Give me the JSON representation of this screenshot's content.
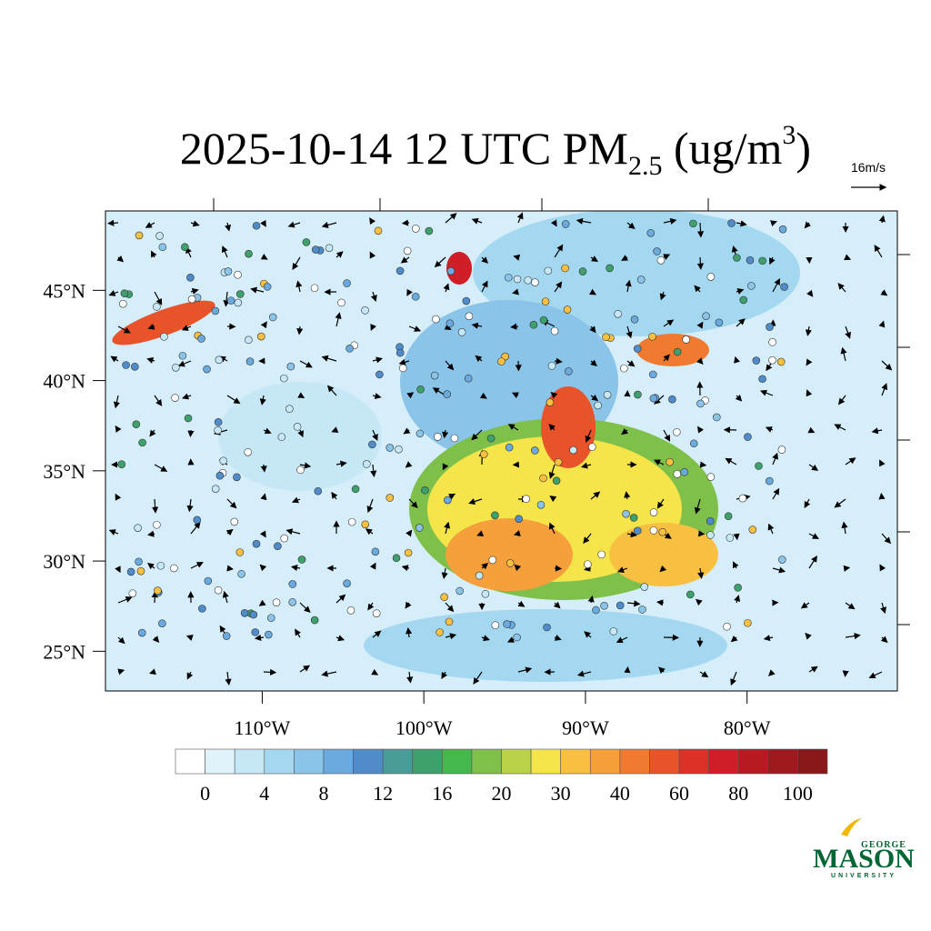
{
  "title": {
    "main": "2025-10-14 12 UTC PM",
    "sub": "2.5",
    "unit_open": " (ug/m",
    "sup": "3",
    "unit_close": ")"
  },
  "vector_reference": "16m/s",
  "map": {
    "xlim": [
      -119.7,
      -70.7
    ],
    "ylim": [
      22.8,
      49.4
    ],
    "xticks": [
      {
        "value": -110,
        "label": "110°W"
      },
      {
        "value": -100,
        "label": "100°W"
      },
      {
        "value": -90,
        "label": "90°W"
      },
      {
        "value": -80,
        "label": "80°W"
      }
    ],
    "yticks": [
      {
        "value": 25,
        "label": "25°N"
      },
      {
        "value": 30,
        "label": "30°N"
      },
      {
        "value": 35,
        "label": "35°N"
      },
      {
        "value": 40,
        "label": "40°N"
      },
      {
        "value": 45,
        "label": "45°N"
      }
    ]
  },
  "colorbar": {
    "colors": [
      "#ffffff",
      "#e0f3fb",
      "#c6e8f6",
      "#a4d8f0",
      "#8ac4e8",
      "#6aaade",
      "#4f8cc9",
      "#4a9c9a",
      "#3ea06c",
      "#44b84a",
      "#7ec04a",
      "#b8d24a",
      "#f5e54a",
      "#f8c040",
      "#f5a03a",
      "#f07a30",
      "#e8532a",
      "#dd3128",
      "#d01e28",
      "#b81a22",
      "#9e1a1e",
      "#8a1818"
    ],
    "ticks": [
      0,
      4,
      8,
      12,
      16,
      20,
      30,
      40,
      60,
      80,
      100
    ]
  },
  "logo": {
    "top": "GEORGE",
    "name": "MASON",
    "bottom": "UNIVERSITY"
  }
}
